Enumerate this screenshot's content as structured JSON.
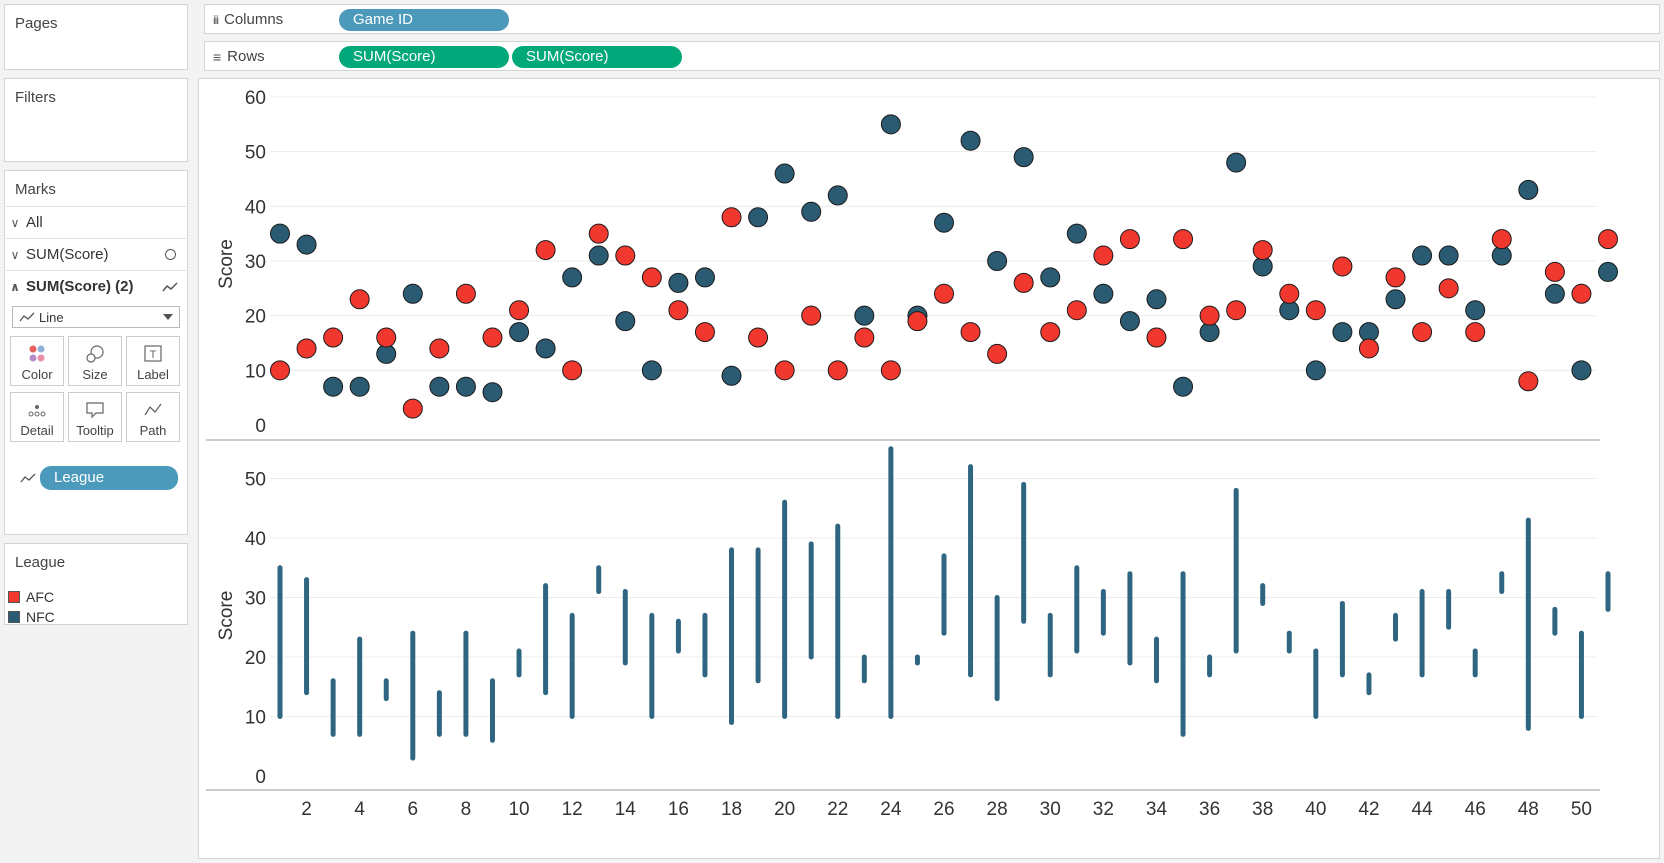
{
  "pages_label": "Pages",
  "filters_label": "Filters",
  "marks": {
    "title": "Marks",
    "all_label": "All",
    "layer1_label": "SUM(Score)",
    "layer2_label": "SUM(Score) (2)",
    "mark_type": "Line",
    "buttons": {
      "color": "Color",
      "size": "Size",
      "label": "Label",
      "detail": "Detail",
      "tooltip": "Tooltip",
      "path": "Path"
    },
    "path_pill": "League"
  },
  "legend": {
    "title": "League",
    "items": [
      {
        "label": "AFC",
        "color": "#f1382f"
      },
      {
        "label": "NFC",
        "color": "#2b5b73"
      }
    ]
  },
  "shelves": {
    "columns_label": "Columns",
    "columns_pill": "Game ID",
    "rows_label": "Rows",
    "rows_pills": [
      "SUM(Score)",
      "SUM(Score)"
    ]
  },
  "colors": {
    "afc": "#f1382f",
    "nfc": "#2b5b73",
    "line": "#2e6580",
    "dim_pill": "#4b9abb",
    "measure_pill": "#00a87a"
  },
  "chart_data": {
    "type": "scatter",
    "x_ticks": [
      2,
      4,
      6,
      8,
      10,
      12,
      14,
      16,
      18,
      20,
      22,
      24,
      26,
      28,
      30,
      32,
      34,
      36,
      38,
      40,
      42,
      44,
      46,
      48,
      50
    ],
    "games": [
      1,
      2,
      3,
      4,
      5,
      6,
      7,
      8,
      9,
      10,
      11,
      12,
      13,
      14,
      15,
      16,
      17,
      18,
      19,
      20,
      21,
      22,
      23,
      24,
      25,
      26,
      27,
      28,
      29,
      30,
      31,
      32,
      33,
      34,
      35,
      36,
      37,
      38,
      39,
      40,
      41,
      42,
      43,
      44,
      45,
      46,
      47,
      48,
      49,
      50,
      51
    ],
    "afc": [
      10,
      14,
      16,
      23,
      16,
      3,
      14,
      24,
      16,
      21,
      32,
      10,
      35,
      31,
      27,
      21,
      17,
      38,
      16,
      10,
      20,
      10,
      16,
      10,
      19,
      24,
      17,
      13,
      26,
      17,
      21,
      31,
      34,
      16,
      34,
      20,
      21,
      32,
      24,
      21,
      29,
      14,
      27,
      17,
      25,
      17,
      34,
      8,
      28,
      24,
      34
    ],
    "nfc": [
      35,
      33,
      7,
      7,
      13,
      24,
      7,
      7,
      6,
      17,
      14,
      27,
      31,
      19,
      10,
      26,
      27,
      9,
      38,
      46,
      39,
      42,
      20,
      55,
      20,
      37,
      52,
      30,
      49,
      27,
      35,
      24,
      19,
      23,
      7,
      17,
      48,
      29,
      21,
      10,
      17,
      17,
      23,
      31,
      31,
      21,
      31,
      43,
      24,
      10,
      28
    ],
    "panels": [
      {
        "ylabel": "Score",
        "y_ticks": [
          0,
          10,
          20,
          30,
          40,
          50,
          60
        ],
        "mark": "circle"
      },
      {
        "ylabel": "Score",
        "y_ticks": [
          0,
          10,
          20,
          30,
          40,
          50
        ],
        "mark": "line"
      }
    ],
    "grid": true
  }
}
